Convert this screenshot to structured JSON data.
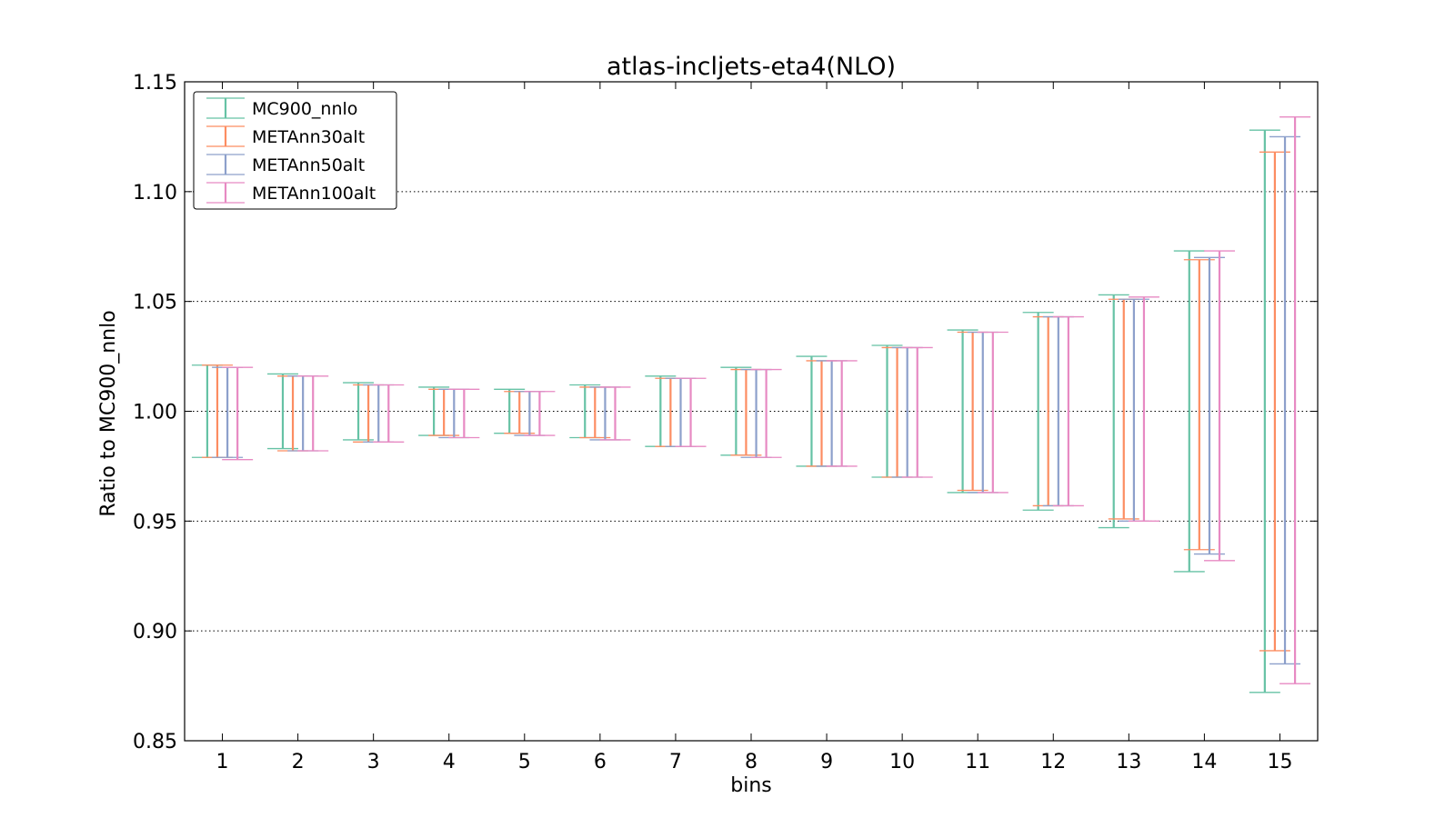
{
  "chart_data": {
    "type": "errorbar",
    "title": "atlas-incljets-eta4(NLO)",
    "xlabel": "bins",
    "ylabel": "Ratio to MC900_nnlo",
    "ylim": [
      0.85,
      1.15
    ],
    "xlim": [
      0.5,
      15.5
    ],
    "yticks": [
      0.85,
      0.9,
      0.95,
      1.0,
      1.05,
      1.1,
      1.15
    ],
    "ytick_labels": [
      "0.85",
      "0.90",
      "0.95",
      "1.00",
      "1.05",
      "1.10",
      "1.15"
    ],
    "x": [
      1,
      2,
      3,
      4,
      5,
      6,
      7,
      8,
      9,
      10,
      11,
      12,
      13,
      14,
      15
    ],
    "xtick_labels": [
      "1",
      "2",
      "3",
      "4",
      "5",
      "6",
      "7",
      "8",
      "9",
      "10",
      "11",
      "12",
      "13",
      "14",
      "15"
    ],
    "grid": "horizontal-dotted",
    "legend_position": "top-left",
    "series": [
      {
        "name": "MC900_nnlo",
        "color": "#66c2a5",
        "ranges": [
          [
            0.979,
            1.021
          ],
          [
            0.983,
            1.017
          ],
          [
            0.987,
            1.013
          ],
          [
            0.989,
            1.011
          ],
          [
            0.99,
            1.01
          ],
          [
            0.988,
            1.012
          ],
          [
            0.984,
            1.016
          ],
          [
            0.98,
            1.02
          ],
          [
            0.975,
            1.025
          ],
          [
            0.97,
            1.03
          ],
          [
            0.963,
            1.037
          ],
          [
            0.955,
            1.045
          ],
          [
            0.947,
            1.053
          ],
          [
            0.927,
            1.073
          ],
          [
            0.872,
            1.128
          ]
        ]
      },
      {
        "name": "METAnn30alt",
        "color": "#fc8d62",
        "ranges": [
          [
            0.979,
            1.021
          ],
          [
            0.982,
            1.016
          ],
          [
            0.986,
            1.012
          ],
          [
            0.989,
            1.01
          ],
          [
            0.99,
            1.009
          ],
          [
            0.988,
            1.011
          ],
          [
            0.984,
            1.015
          ],
          [
            0.98,
            1.019
          ],
          [
            0.975,
            1.023
          ],
          [
            0.97,
            1.029
          ],
          [
            0.964,
            1.036
          ],
          [
            0.957,
            1.043
          ],
          [
            0.951,
            1.051
          ],
          [
            0.937,
            1.069
          ],
          [
            0.891,
            1.118
          ]
        ]
      },
      {
        "name": "METAnn50alt",
        "color": "#8da0cb",
        "ranges": [
          [
            0.979,
            1.02
          ],
          [
            0.982,
            1.016
          ],
          [
            0.986,
            1.012
          ],
          [
            0.988,
            1.01
          ],
          [
            0.989,
            1.009
          ],
          [
            0.987,
            1.011
          ],
          [
            0.984,
            1.015
          ],
          [
            0.979,
            1.019
          ],
          [
            0.975,
            1.023
          ],
          [
            0.97,
            1.029
          ],
          [
            0.963,
            1.036
          ],
          [
            0.957,
            1.043
          ],
          [
            0.95,
            1.051
          ],
          [
            0.935,
            1.07
          ],
          [
            0.885,
            1.125
          ]
        ]
      },
      {
        "name": "METAnn100alt",
        "color": "#e78ac3",
        "ranges": [
          [
            0.978,
            1.02
          ],
          [
            0.982,
            1.016
          ],
          [
            0.986,
            1.012
          ],
          [
            0.988,
            1.01
          ],
          [
            0.989,
            1.009
          ],
          [
            0.987,
            1.011
          ],
          [
            0.984,
            1.015
          ],
          [
            0.979,
            1.019
          ],
          [
            0.975,
            1.023
          ],
          [
            0.97,
            1.029
          ],
          [
            0.963,
            1.036
          ],
          [
            0.957,
            1.043
          ],
          [
            0.95,
            1.052
          ],
          [
            0.932,
            1.073
          ],
          [
            0.876,
            1.134
          ]
        ]
      }
    ]
  }
}
